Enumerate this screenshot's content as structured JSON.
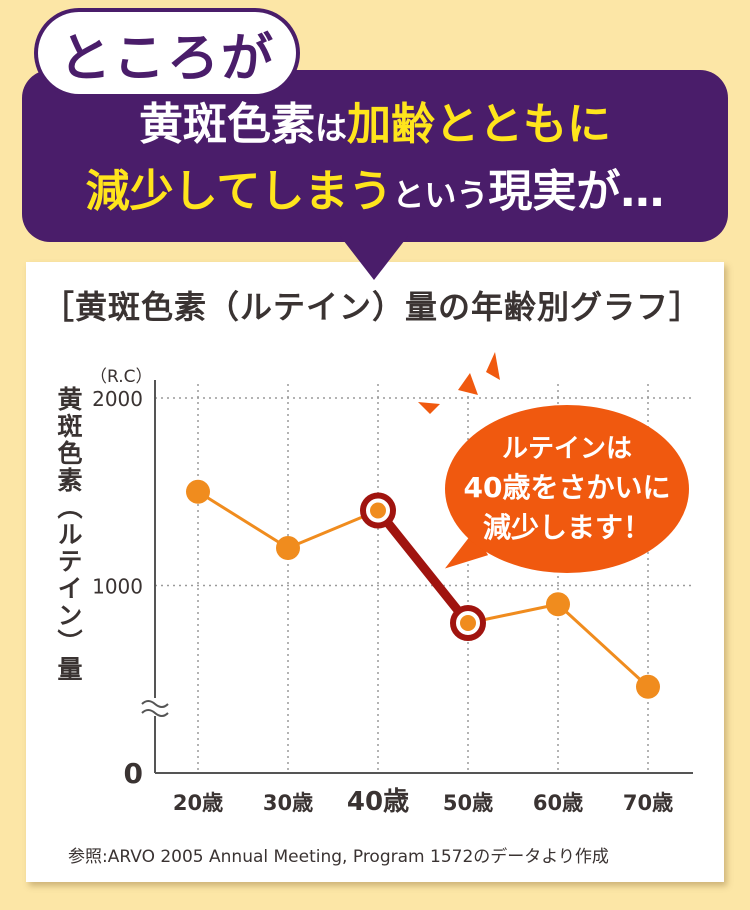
{
  "header": {
    "tokoroga": "ところが",
    "line1_a": "黄斑色素",
    "line1_b": "は",
    "line1_c": "加齢とともに",
    "line2_a": "減少してしまう",
    "line2_b": "という",
    "line2_c": "現実が…"
  },
  "callout": {
    "line1": "ルテインは",
    "line2": "40歳をさかいに",
    "line3": "減少します！"
  },
  "colors": {
    "purple": "#4a1d6a",
    "yellow": "#ffe51c",
    "orange": "#f0590f",
    "series": "#f08c1e",
    "highlight": "#a0140f",
    "background": "#fce6a6"
  },
  "chart_data": {
    "type": "line",
    "title": "［黄斑色素（ルテイン）量の年齢別グラフ］",
    "ylabel": "黄斑色素（ルテイン）量",
    "yunit": "（R.C）",
    "categories": [
      "20歳",
      "30歳",
      "40歳",
      "50歳",
      "60歳",
      "70歳"
    ],
    "values": [
      1500,
      1200,
      1400,
      800,
      900,
      460
    ],
    "highlight_range": [
      "40歳",
      "50歳"
    ],
    "yticks": [
      0,
      1000,
      2000
    ],
    "ylim": [
      0,
      2000
    ],
    "axis_break": true,
    "grid": "dotted",
    "source": "参照:ARVO 2005 Annual Meeting, Program 1572のデータより作成"
  }
}
